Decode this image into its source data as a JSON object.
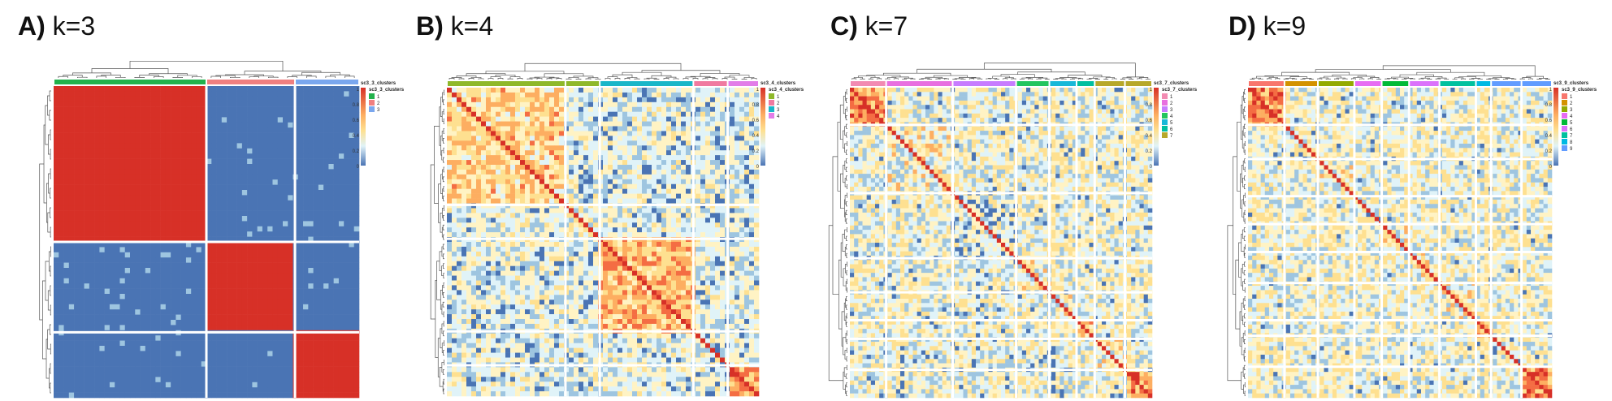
{
  "panels": [
    {
      "id": "A",
      "letter": "A)",
      "title": "k=3",
      "legend_title": "sc3_3_clusters",
      "clusters": [
        "1",
        "2",
        "3"
      ],
      "cluster_colors": [
        "#22b24c",
        "#f08080",
        "#7aa7ee"
      ],
      "colorbar_ticks": [
        "1",
        "0.8",
        "0.6",
        "0.4",
        "0.2",
        "0"
      ]
    },
    {
      "id": "B",
      "letter": "B)",
      "title": "k=4",
      "legend_title": "sc3_4_clusters",
      "clusters": [
        "1",
        "2",
        "3",
        "4"
      ],
      "cluster_colors": [
        "#8fb82a",
        "#f07aa0",
        "#19b6c8",
        "#e27de8"
      ],
      "colorbar_ticks": [
        "1",
        "0.8",
        "0.6",
        "0.4",
        "0.2",
        "0"
      ]
    },
    {
      "id": "C",
      "letter": "C)",
      "title": "k=7",
      "legend_title": "sc3_7_clusters",
      "clusters": [
        "1",
        "2",
        "3",
        "4",
        "5",
        "6",
        "7"
      ],
      "cluster_colors": [
        "#f28bb2",
        "#e86fe0",
        "#c77cff",
        "#22c55e",
        "#18b8d8",
        "#00bfa0",
        "#b7a82a"
      ],
      "colorbar_ticks": [
        "1",
        "0.8",
        "0.6",
        "0.4",
        "0.2",
        "0"
      ]
    },
    {
      "id": "D",
      "letter": "D)",
      "title": "k=9",
      "legend_title": "sc3_9_clusters",
      "clusters": [
        "1",
        "2",
        "3",
        "4",
        "5",
        "6",
        "7",
        "8",
        "9"
      ],
      "cluster_colors": [
        "#f8766d",
        "#d39200",
        "#93aa00",
        "#e76bf3",
        "#00ba38",
        "#db72fb",
        "#00c19f",
        "#00b9e3",
        "#619cff"
      ],
      "colorbar_ticks": [
        "1",
        "0.8",
        "0.6",
        "0.4",
        "0.2",
        "0"
      ]
    }
  ],
  "colors": {
    "high": "#d73027",
    "mid": "#fee090",
    "low": "#4a74b4",
    "pale": "#e0f3f8"
  }
}
